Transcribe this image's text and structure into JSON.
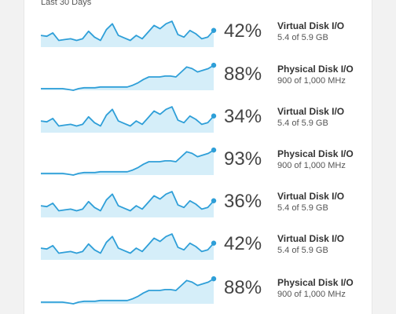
{
  "panel": {
    "subtitle": "Last 30 Days"
  },
  "colors": {
    "line": "#2f9fd8",
    "fill": "#d5eef9",
    "dot": "#2f9fd8"
  },
  "rows": [
    {
      "percent": "42%",
      "name": "Virtual Disk I/O",
      "detail": "5.4 of 5.9 GB",
      "series": [
        14,
        13,
        17,
        8,
        9,
        10,
        8,
        10,
        19,
        12,
        8,
        21,
        28,
        14,
        11,
        8,
        14,
        10,
        18,
        26,
        22,
        28,
        31,
        15,
        12,
        20,
        16,
        10,
        12,
        20
      ]
    },
    {
      "percent": "88%",
      "name": "Physical Disk I/O",
      "detail": "900 of 1,000 MHz",
      "series": [
        2,
        2,
        2,
        2,
        2,
        1,
        0,
        2,
        3,
        3,
        3,
        4,
        4,
        4,
        4,
        4,
        4,
        6,
        9,
        13,
        16,
        16,
        16,
        17,
        17,
        16,
        22,
        28,
        26,
        22,
        24,
        26,
        30
      ]
    },
    {
      "percent": "34%",
      "name": "Virtual Disk I/O",
      "detail": "5.4 of 5.9 GB",
      "series": [
        14,
        13,
        17,
        8,
        9,
        10,
        8,
        10,
        19,
        12,
        8,
        21,
        28,
        14,
        11,
        8,
        14,
        10,
        18,
        26,
        22,
        28,
        31,
        15,
        12,
        20,
        16,
        10,
        12,
        20
      ]
    },
    {
      "percent": "93%",
      "name": "Physical Disk I/O",
      "detail": "900 of 1,000 MHz",
      "series": [
        2,
        2,
        2,
        2,
        2,
        1,
        0,
        2,
        3,
        3,
        3,
        4,
        4,
        4,
        4,
        4,
        4,
        6,
        9,
        13,
        16,
        16,
        16,
        17,
        17,
        16,
        22,
        28,
        26,
        22,
        24,
        26,
        30
      ]
    },
    {
      "percent": "36%",
      "name": "Virtual Disk I/O",
      "detail": "5.4 of 5.9 GB",
      "series": [
        14,
        13,
        17,
        8,
        9,
        10,
        8,
        10,
        19,
        12,
        8,
        21,
        28,
        14,
        11,
        8,
        14,
        10,
        18,
        26,
        22,
        28,
        31,
        15,
        12,
        20,
        16,
        10,
        12,
        20
      ]
    },
    {
      "percent": "42%",
      "name": "Virtual Disk I/O",
      "detail": "5.4 of 5.9 GB",
      "series": [
        14,
        13,
        17,
        8,
        9,
        10,
        8,
        10,
        19,
        12,
        8,
        21,
        28,
        14,
        11,
        8,
        14,
        10,
        18,
        26,
        22,
        28,
        31,
        15,
        12,
        20,
        16,
        10,
        12,
        20
      ]
    },
    {
      "percent": "88%",
      "name": "Physical Disk I/O",
      "detail": "900 of 1,000 MHz",
      "series": [
        2,
        2,
        2,
        2,
        2,
        1,
        0,
        2,
        3,
        3,
        3,
        4,
        4,
        4,
        4,
        4,
        4,
        6,
        9,
        13,
        16,
        16,
        16,
        17,
        17,
        16,
        22,
        28,
        26,
        22,
        24,
        26,
        30
      ]
    }
  ]
}
